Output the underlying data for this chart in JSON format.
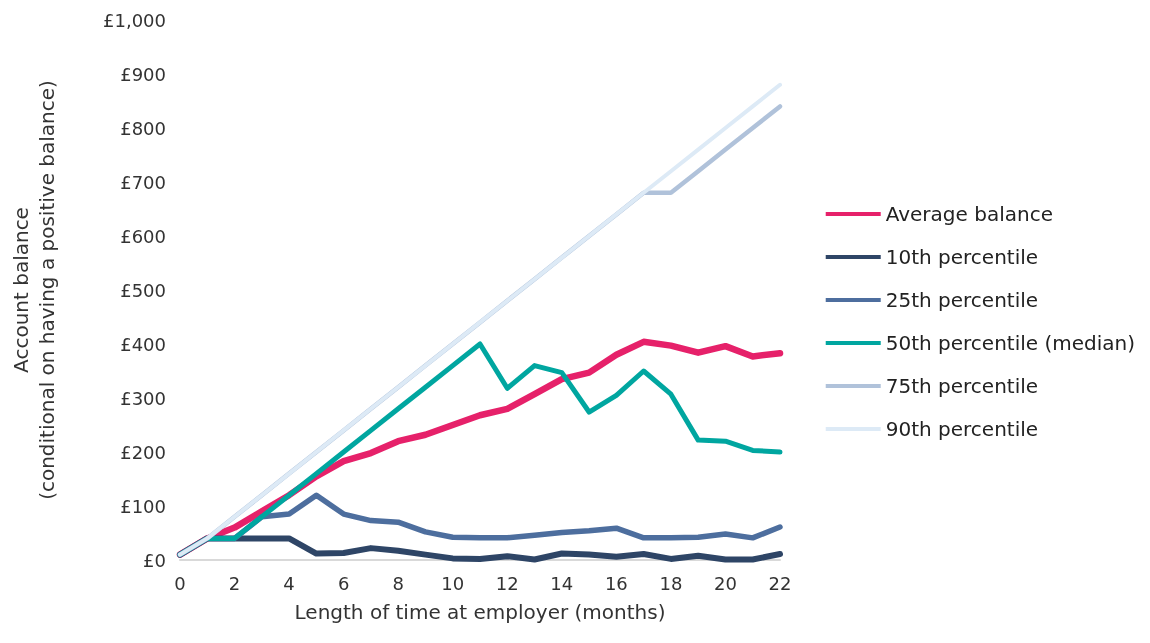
{
  "chart_data": {
    "type": "line",
    "xlabel": "Length of time at employer (months)",
    "ylabel": "Account balance\n(conditional on having a positive balance)",
    "x": [
      0,
      1,
      2,
      3,
      4,
      5,
      6,
      7,
      8,
      9,
      10,
      11,
      12,
      13,
      14,
      15,
      16,
      17,
      18,
      19,
      20,
      21,
      22
    ],
    "xlim": [
      0,
      22
    ],
    "xticks": [
      0,
      2,
      4,
      6,
      8,
      10,
      12,
      14,
      16,
      18,
      20,
      22
    ],
    "ylim": [
      0,
      1000
    ],
    "yticks": [
      {
        "value": 0,
        "label": "£0"
      },
      {
        "value": 100,
        "label": "£100"
      },
      {
        "value": 200,
        "label": "£200"
      },
      {
        "value": 300,
        "label": "£300"
      },
      {
        "value": 400,
        "label": "£400"
      },
      {
        "value": 500,
        "label": "£500"
      },
      {
        "value": 600,
        "label": "£600"
      },
      {
        "value": 700,
        "label": "£700"
      },
      {
        "value": 800,
        "label": "£800"
      },
      {
        "value": 900,
        "label": "£900"
      },
      {
        "value": 1000,
        "label": "£1,000"
      }
    ],
    "grid": false,
    "legend": "right",
    "marker": "none",
    "line_style": "solid",
    "series": [
      {
        "name": "Average balance",
        "color": "#e6216a",
        "values": [
          10,
          40,
          60,
          90,
          120,
          155,
          183,
          198,
          220,
          232,
          250,
          268,
          280,
          307,
          335,
          347,
          380,
          404,
          397,
          384,
          396,
          377,
          383
        ]
      },
      {
        "name": "10th percentile",
        "color": "#2e4566",
        "values": [
          10,
          40,
          40,
          40,
          40,
          12,
          13,
          22,
          17,
          10,
          3,
          2,
          7,
          1,
          12,
          10,
          6,
          11,
          2,
          8,
          1,
          1,
          11
        ]
      },
      {
        "name": "25th percentile",
        "color": "#4d6e9e",
        "values": [
          10,
          40,
          40,
          80,
          85,
          120,
          85,
          73,
          70,
          52,
          42,
          41,
          41,
          46,
          51,
          54,
          59,
          41,
          41,
          42,
          48,
          41,
          61
        ]
      },
      {
        "name": "50th percentile (median)",
        "color": "#00a6a0",
        "values": [
          10,
          40,
          40,
          80,
          120,
          160,
          200,
          240,
          280,
          320,
          360,
          400,
          318,
          360,
          347,
          274,
          305,
          350,
          307,
          222,
          220,
          203,
          200
        ]
      },
      {
        "name": "75th percentile",
        "color": "#b0c2da",
        "values": [
          10,
          40,
          80,
          120,
          160,
          200,
          240,
          280,
          320,
          360,
          400,
          440,
          480,
          520,
          560,
          600,
          640,
          680,
          680,
          720,
          760,
          800,
          840
        ]
      },
      {
        "name": "90th percentile",
        "color": "#ddeaf6",
        "values": [
          10,
          40,
          80,
          120,
          160,
          200,
          240,
          280,
          320,
          360,
          400,
          440,
          480,
          520,
          560,
          600,
          640,
          680,
          720,
          760,
          800,
          840,
          880
        ]
      }
    ]
  }
}
